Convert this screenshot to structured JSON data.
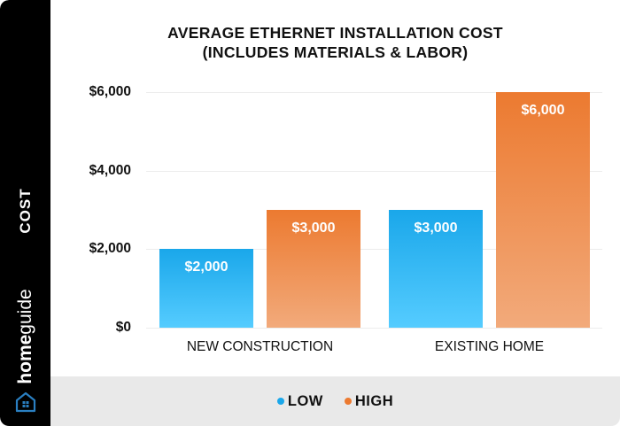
{
  "chart_data": {
    "type": "bar",
    "title": "AVERAGE ETHERNET INSTALLATION COST (INCLUDES MATERIALS & LABOR)",
    "title_lines": [
      "AVERAGE ETHERNET INSTALLATION COST",
      "(INCLUDES MATERIALS & LABOR)"
    ],
    "xlabel": "",
    "ylabel": "COST",
    "categories": [
      "NEW CONSTRUCTION",
      "EXISTING HOME"
    ],
    "series": [
      {
        "name": "LOW",
        "color": "#1aa7ea",
        "values": [
          2000,
          3000
        ],
        "labels": [
          "$2,000",
          "$3,000"
        ]
      },
      {
        "name": "HIGH",
        "color": "#ec7a30",
        "values": [
          3000,
          6000
        ],
        "labels": [
          "$3,000",
          "$6,000"
        ]
      }
    ],
    "ylim": [
      0,
      6000
    ],
    "yticks": [
      0,
      2000,
      4000,
      6000
    ],
    "ytick_labels": [
      "$0",
      "$2,000",
      "$4,000",
      "$6,000"
    ],
    "grid": true,
    "legend_position": "bottom"
  },
  "brand": {
    "name_bold": "home",
    "name_regular": "guide",
    "icon": "house-icon",
    "icon_color": "#2a7fc1"
  },
  "colors": {
    "sidebar": "#000000",
    "low": "#1aa7ea",
    "high": "#ec7a30",
    "legend_band": "#e9e9e9"
  }
}
